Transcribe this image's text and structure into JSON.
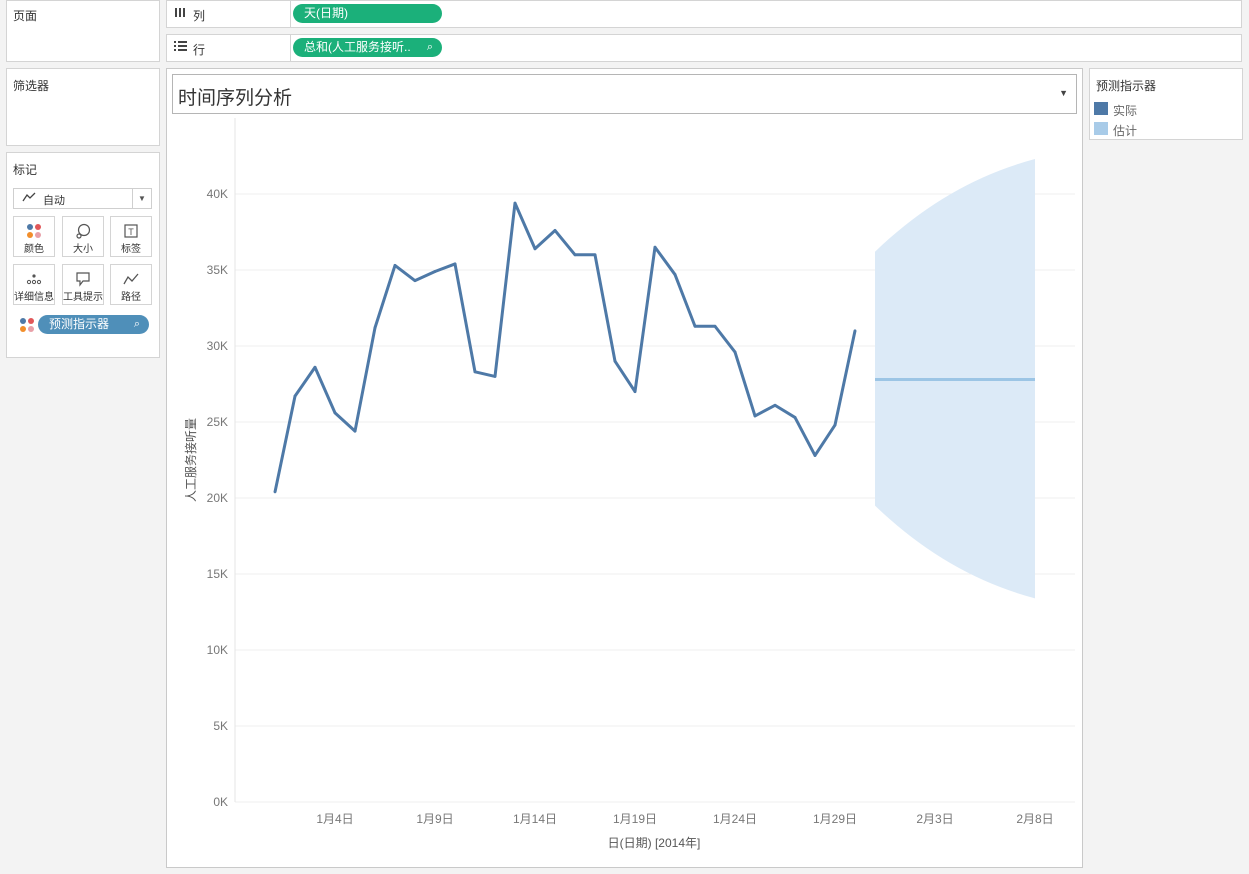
{
  "cards": {
    "pages": {
      "title": "页面"
    },
    "filters": {
      "title": "筛选器"
    },
    "marks": {
      "title": "标记",
      "mark_type": "自动",
      "buttons": [
        {
          "label": "颜色",
          "icon": "color-dots-icon"
        },
        {
          "label": "大小",
          "icon": "size-icon"
        },
        {
          "label": "标签",
          "icon": "label-icon"
        },
        {
          "label": "详细信息",
          "icon": "detail-icon"
        },
        {
          "label": "工具提示",
          "icon": "tooltip-icon"
        },
        {
          "label": "路径",
          "icon": "path-icon"
        }
      ],
      "field_pill": "预测指示器"
    }
  },
  "shelves": {
    "columns": {
      "label": "列",
      "pill": "天(日期)"
    },
    "rows": {
      "label": "行",
      "pill": "总和(人工服务接听.."
    }
  },
  "view": {
    "title": "时间序列分析"
  },
  "legend": {
    "title": "预测指示器",
    "items": [
      {
        "label": "实际",
        "color": "#4e79a7"
      },
      {
        "label": "估计",
        "color": "#a8cbe8"
      }
    ]
  },
  "colors": {
    "actual_line": "#4e79a7",
    "estimate_line": "#9cc5e5",
    "estimate_band": "#dceaf7",
    "pill_green": "#1bb07a",
    "pill_blue": "#4f8fb9"
  },
  "chart_data": {
    "type": "line",
    "title": "时间序列分析",
    "xlabel": "日(日期) [2014年]",
    "ylabel": "人工服务接听量",
    "ylim": [
      0,
      45000
    ],
    "yticks": [
      {
        "v": 0,
        "label": "0K"
      },
      {
        "v": 5000,
        "label": "5K"
      },
      {
        "v": 10000,
        "label": "10K"
      },
      {
        "v": 15000,
        "label": "15K"
      },
      {
        "v": 20000,
        "label": "20K"
      },
      {
        "v": 25000,
        "label": "25K"
      },
      {
        "v": 30000,
        "label": "30K"
      },
      {
        "v": 35000,
        "label": "35K"
      },
      {
        "v": 40000,
        "label": "40K"
      }
    ],
    "xlim": [
      "2013-12-30",
      "2014-02-10"
    ],
    "xticks": [
      {
        "date": "2014-01-04",
        "label": "1月4日"
      },
      {
        "date": "2014-01-09",
        "label": "1月9日"
      },
      {
        "date": "2014-01-14",
        "label": "1月14日"
      },
      {
        "date": "2014-01-19",
        "label": "1月19日"
      },
      {
        "date": "2014-01-24",
        "label": "1月24日"
      },
      {
        "date": "2014-01-29",
        "label": "1月29日"
      },
      {
        "date": "2014-02-03",
        "label": "2月3日"
      },
      {
        "date": "2014-02-08",
        "label": "2月8日"
      }
    ],
    "grid": true,
    "series": [
      {
        "name": "实际",
        "x": [
          "2014-01-01",
          "2014-01-02",
          "2014-01-03",
          "2014-01-04",
          "2014-01-05",
          "2014-01-06",
          "2014-01-07",
          "2014-01-08",
          "2014-01-09",
          "2014-01-10",
          "2014-01-11",
          "2014-01-12",
          "2014-01-13",
          "2014-01-14",
          "2014-01-15",
          "2014-01-16",
          "2014-01-17",
          "2014-01-18",
          "2014-01-19",
          "2014-01-20",
          "2014-01-21",
          "2014-01-22",
          "2014-01-23",
          "2014-01-24",
          "2014-01-25",
          "2014-01-26",
          "2014-01-27",
          "2014-01-28",
          "2014-01-29",
          "2014-01-30"
        ],
        "values": [
          20400,
          26700,
          28600,
          25600,
          24400,
          31200,
          35300,
          34300,
          34900,
          35400,
          28300,
          28000,
          39400,
          36400,
          37600,
          36000,
          36000,
          29000,
          27000,
          36500,
          34700,
          31300,
          31300,
          29600,
          25400,
          26100,
          25300,
          22800,
          24800,
          31000
        ]
      },
      {
        "name": "估计",
        "x": [
          "2014-01-31",
          "2014-02-08"
        ],
        "values": [
          27800,
          27800
        ],
        "lower": [
          19500,
          13400
        ],
        "upper": [
          36200,
          42300
        ]
      }
    ]
  }
}
